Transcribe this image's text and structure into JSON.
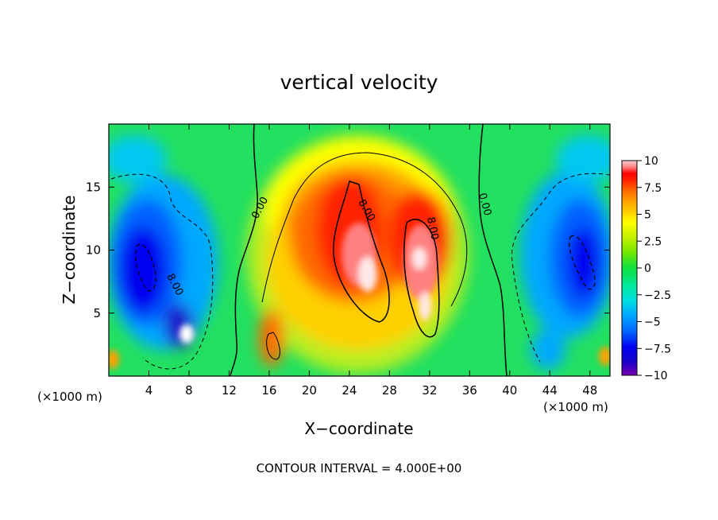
{
  "chart_data": {
    "type": "heatmap",
    "title": "vertical velocity",
    "xlabel": "X−coordinate",
    "ylabel": "Z−coordinate",
    "x_unit_left": "(×1000 m)",
    "x_unit_right": "(×1000 m)",
    "footer": "CONTOUR INTERVAL = 4.000E+00",
    "xlim": [
      0,
      50
    ],
    "ylim": [
      0,
      20
    ],
    "x_ticks": [
      "4",
      "8",
      "12",
      "16",
      "20",
      "24",
      "28",
      "32",
      "36",
      "40",
      "44",
      "48"
    ],
    "y_ticks": [
      "5",
      "10",
      "15"
    ],
    "colorbar": {
      "range": [
        -10,
        10
      ],
      "ticks": [
        "10",
        "7.5",
        "5",
        "2.5",
        "0",
        "−2.5",
        "−5",
        "−7.5",
        "−10"
      ],
      "colors": [
        "#7a00b0",
        "#1a00c8",
        "#0000f0",
        "#0060ff",
        "#00a8ff",
        "#00e0e0",
        "#00e898",
        "#10e040",
        "#70e800",
        "#c0f000",
        "#ffff00",
        "#ffd000",
        "#ffa000",
        "#ff6a00",
        "#ff2000",
        "#ff0000",
        "#ff8080",
        "#ffd0d0"
      ]
    },
    "contour_labels": [
      "0.00",
      "0.00",
      "8.00",
      "8.00",
      "8.00"
    ],
    "contour_interval": 4.0,
    "features": [
      {
        "kind": "updraft",
        "x": 25.5,
        "z": 8,
        "peak": 10
      },
      {
        "kind": "updraft",
        "x": 31,
        "z": 7,
        "peak": 10
      },
      {
        "kind": "downdraft",
        "x": 5,
        "z": 8,
        "peak": -9
      },
      {
        "kind": "downdraft",
        "x": 46,
        "z": 10,
        "peak": -9
      }
    ]
  }
}
